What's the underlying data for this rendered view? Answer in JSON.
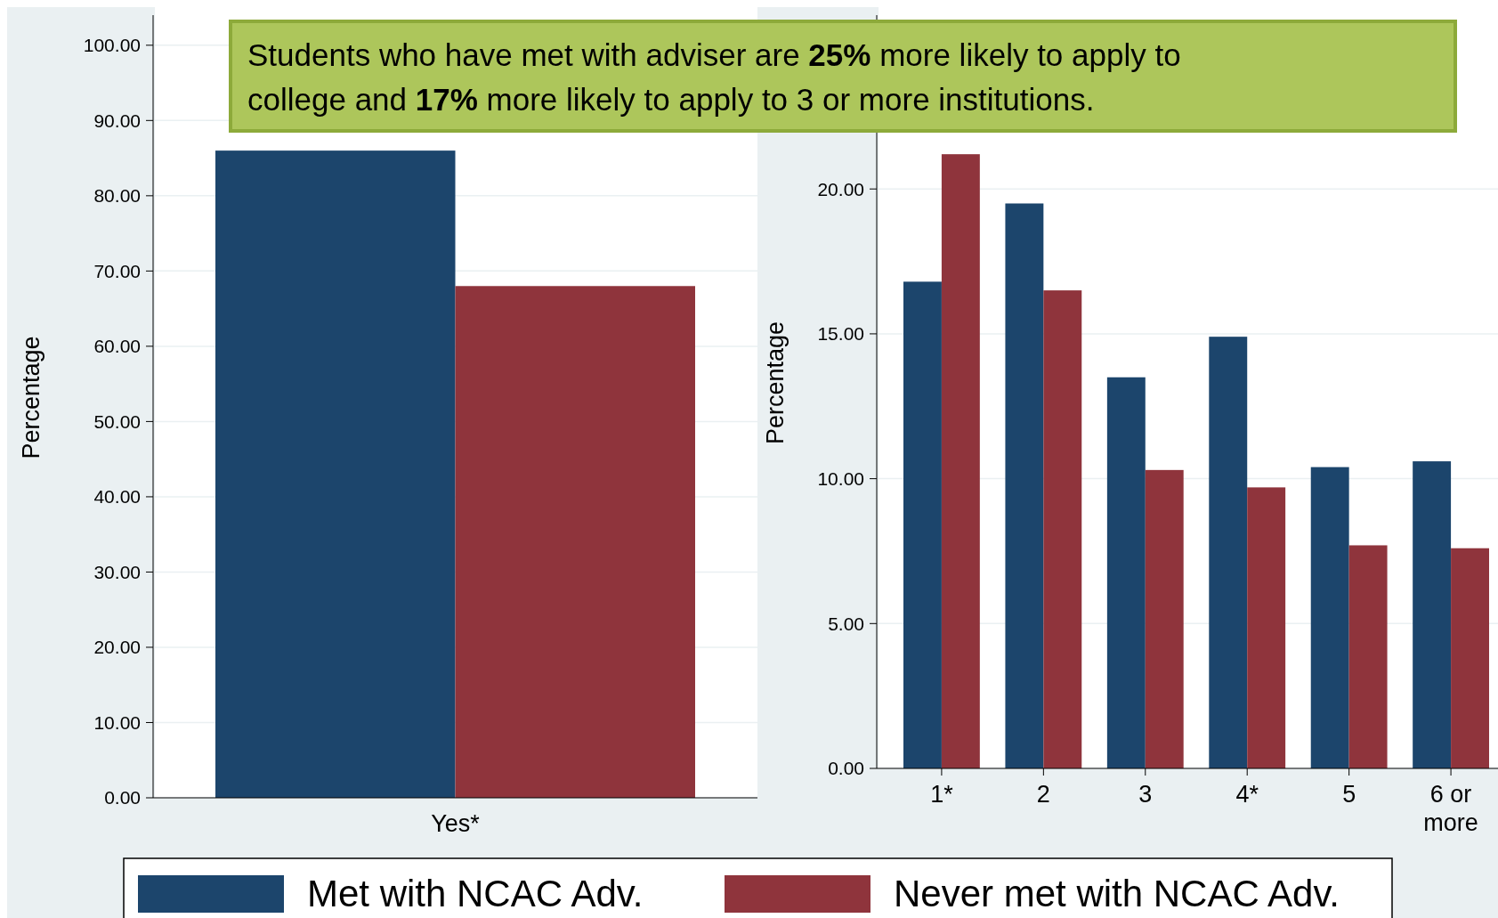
{
  "chart_data": [
    {
      "type": "bar",
      "categories": [
        "Yes*"
      ],
      "ylabel": "Percentage",
      "ylim": [
        0,
        104
      ],
      "yticks": [
        {
          "value": 0,
          "label": "0.00"
        },
        {
          "value": 10,
          "label": "10.00"
        },
        {
          "value": 20,
          "label": "20.00"
        },
        {
          "value": 30,
          "label": "30.00"
        },
        {
          "value": 40,
          "label": "40.00"
        },
        {
          "value": 50,
          "label": "50.00"
        },
        {
          "value": 60,
          "label": "60.00"
        },
        {
          "value": 70,
          "label": "70.00"
        },
        {
          "value": 80,
          "label": "80.00"
        },
        {
          "value": 90,
          "label": "90.00"
        },
        {
          "value": 100,
          "label": "100.00"
        }
      ],
      "grid": "y",
      "legend": "bottom",
      "series": [
        {
          "name": "Met with NCAC Adv.",
          "color": "#1c456c",
          "values": [
            86
          ]
        },
        {
          "name": "Never met with NCAC Adv.",
          "color": "#8f343c",
          "values": [
            68
          ]
        }
      ],
      "annotations": [
        "Students who have met with adviser are 25% more likely to apply to college and 17% more likely to apply to 3 or more institutions."
      ]
    },
    {
      "type": "bar",
      "categories": [
        "1*",
        "2",
        "3",
        "4*",
        "5",
        "6 or more"
      ],
      "ylabel": "Percentage",
      "ylim": [
        0,
        26
      ],
      "yticks": [
        {
          "value": 0,
          "label": "0.00"
        },
        {
          "value": 5,
          "label": "5.00"
        },
        {
          "value": 10,
          "label": "10.00"
        },
        {
          "value": 15,
          "label": "15.00"
        },
        {
          "value": 20,
          "label": "20.00"
        }
      ],
      "grid": "y",
      "series": [
        {
          "color": "#1c456c",
          "values": [
            16.8,
            19.5,
            13.5,
            14.9,
            10.4,
            10.6
          ]
        },
        {
          "color": "#8f343c",
          "values": [
            21.2,
            16.5,
            10.3,
            9.7,
            7.7,
            7.6
          ]
        }
      ]
    }
  ]
}
